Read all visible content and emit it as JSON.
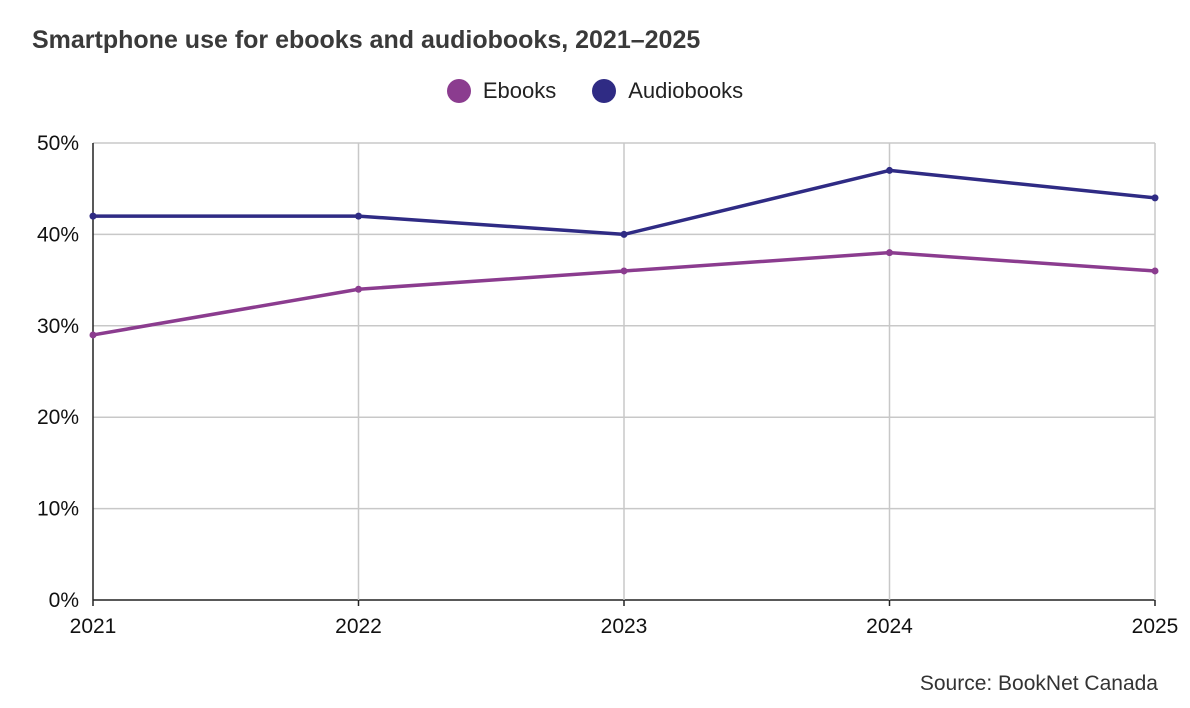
{
  "chart_data": {
    "type": "line",
    "title": "Smartphone use for ebooks and audiobooks, 2021–2025",
    "x": [
      "2021",
      "2022",
      "2023",
      "2024",
      "2025"
    ],
    "series": [
      {
        "name": "Ebooks",
        "color": "#8b3c8f",
        "values": [
          29,
          34,
          36,
          38,
          36
        ]
      },
      {
        "name": "Audiobooks",
        "color": "#2f2b84",
        "values": [
          42,
          42,
          40,
          47,
          44
        ]
      }
    ],
    "ylim": [
      0,
      50
    ],
    "yticks": [
      0,
      10,
      20,
      30,
      40,
      50
    ],
    "ytick_labels": [
      "0%",
      "10%",
      "20%",
      "30%",
      "40%",
      "50%"
    ],
    "grid": true,
    "legend_position": "top-center",
    "xlabel": "",
    "ylabel": ""
  },
  "source": "Source: BookNet Canada"
}
